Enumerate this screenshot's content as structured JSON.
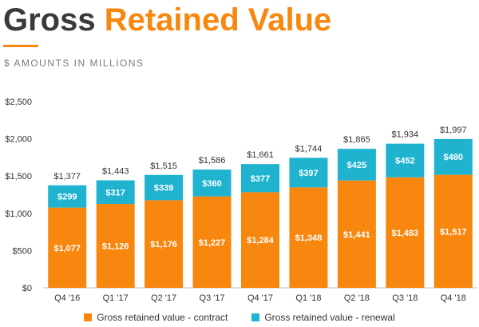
{
  "header": {
    "title_part1": "Gross",
    "title_part2": "Retained Value",
    "subtitle": "$ AMOUNTS IN MILLIONS"
  },
  "colors": {
    "contract": "#f7870f",
    "renewal": "#1fb3cf",
    "title_dark": "#3a3a3a",
    "accent": "#f7870f"
  },
  "chart_data": {
    "type": "bar",
    "stacked": true,
    "categories": [
      "Q4 '16",
      "Q1 '17",
      "Q2 '17",
      "Q3 '17",
      "Q4 '17",
      "Q1 '18",
      "Q2 '18",
      "Q3 '18",
      "Q4 '18"
    ],
    "series": [
      {
        "name": "Gross retained value - contract",
        "values": [
          1077,
          1126,
          1176,
          1227,
          1284,
          1348,
          1441,
          1483,
          1517
        ],
        "labels": [
          "$1,077",
          "$1,126",
          "$1,176",
          "$1,227",
          "$1,284",
          "$1,348",
          "$1,441",
          "$1,483",
          "$1,517"
        ]
      },
      {
        "name": "Gross retained value - renewal",
        "values": [
          299,
          317,
          339,
          360,
          377,
          397,
          425,
          452,
          480
        ],
        "labels": [
          "$299",
          "$317",
          "$339",
          "$360",
          "$377",
          "$397",
          "$425",
          "$452",
          "$480"
        ]
      }
    ],
    "totals": [
      1377,
      1443,
      1515,
      1586,
      1661,
      1744,
      1865,
      1934,
      1997
    ],
    "total_labels": [
      "$1,377",
      "$1,443",
      "$1,515",
      "$1,586",
      "$1,661",
      "$1,744",
      "$1,865",
      "$1,934",
      "$1,997"
    ],
    "ylim": [
      0,
      2500
    ],
    "yticks": [
      0,
      500,
      1000,
      1500,
      2000,
      2500
    ],
    "ytick_labels": [
      "$0",
      "$500",
      "$1,000",
      "$1,500",
      "$2,000",
      "$2,500"
    ],
    "grid": false,
    "legend": "bottom"
  }
}
